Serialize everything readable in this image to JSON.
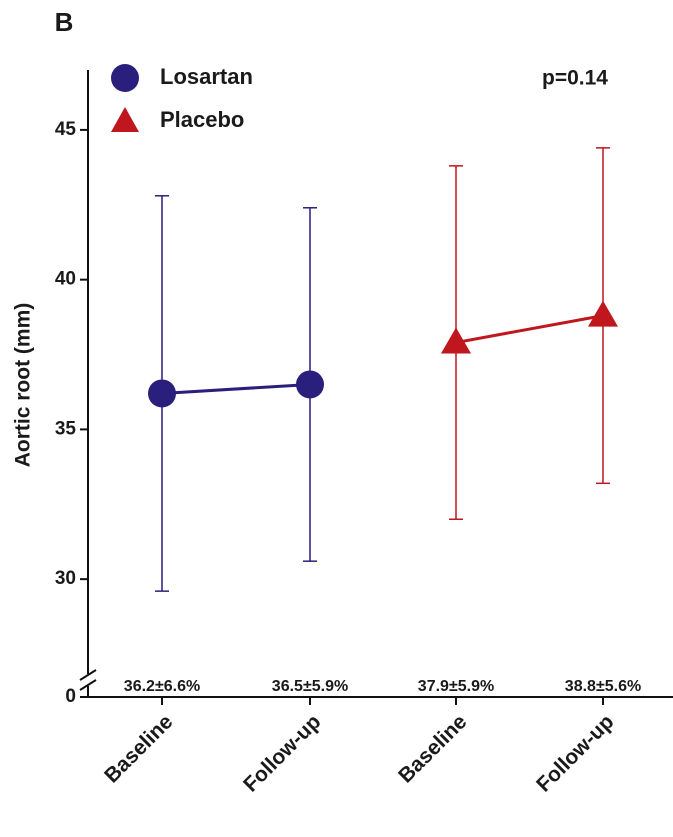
{
  "chart_data": {
    "type": "errorbar",
    "panel_label": "B",
    "y_label": "Aortic root (mm)",
    "annotation": "p=0.14",
    "categories": [
      "Baseline",
      "Follow-up",
      "Baseline",
      "Follow-up"
    ],
    "series": [
      {
        "name": "Losartan",
        "color": "#2b1f7d",
        "marker": "circle",
        "values": [
          36.2,
          36.5,
          null,
          null
        ],
        "errors": [
          6.6,
          5.9,
          null,
          null
        ],
        "value_labels": [
          "36.2±6.6%",
          "36.5±5.9%",
          null,
          null
        ]
      },
      {
        "name": "Placebo",
        "color": "#c0161d",
        "marker": "triangle",
        "values": [
          null,
          null,
          37.9,
          38.8
        ],
        "errors": [
          null,
          null,
          5.9,
          5.6
        ],
        "value_labels": [
          null,
          null,
          "37.9±5.9%",
          "38.8±5.6%"
        ]
      }
    ],
    "ylim": [
      0,
      47
    ],
    "y_break": [
      0,
      27
    ],
    "yticks": [
      0,
      30,
      35,
      40,
      45
    ],
    "legend": "upper left"
  }
}
